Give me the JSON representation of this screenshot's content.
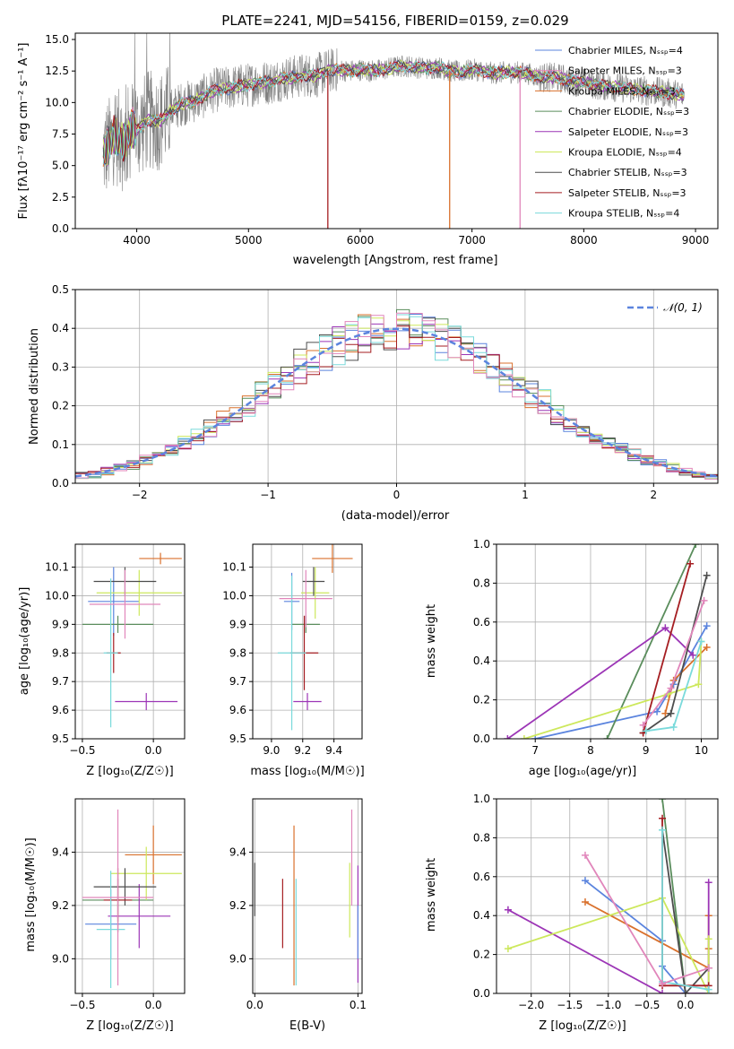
{
  "colors": [
    "#5b84de",
    "#d9712d",
    "#5a8d5c",
    "#9c35b6",
    "#cde85c",
    "#4d4d4d",
    "#a51e22",
    "#7adadb",
    "#e186bb"
  ],
  "chart_data": [
    {
      "id": "spectrum",
      "type": "line",
      "title": "PLATE=2241, MJD=54156, FIBERID=0159, z=0.029",
      "xlabel": "wavelength [Angstrom, rest frame]",
      "ylabel": "Flux [fλ10⁻¹⁷ erg cm⁻² s⁻¹ A⁻¹]",
      "xlim": [
        3450,
        9200
      ],
      "ylim": [
        0,
        15.5
      ],
      "xticks": [
        4000,
        5000,
        6000,
        7000,
        8000,
        9000
      ],
      "yticks": [
        0.0,
        2.5,
        5.0,
        7.5,
        10.0,
        12.5,
        15.0
      ],
      "legend_position": "upper-right",
      "legend": [
        "Chabrier MILES, Nₛₛₚ=4",
        "Salpeter MILES, Nₛₛₚ=3",
        "Kroupa MILES, Nₛₛₚ=3",
        "Chabrier ELODIE, Nₛₛₚ=3",
        "Salpeter ELODIE, Nₛₛₚ=3",
        "Kroupa ELODIE, Nₛₛₚ=4",
        "Chabrier STELIB, Nₛₛₚ=3",
        "Salpeter STELIB, Nₛₛₚ=3",
        "Kroupa STELIB, Nₛₛₚ=4"
      ],
      "legend_colors": [
        "#5b84de",
        "#e186bb",
        "#d9712d",
        "#5a8d5c",
        "#9c35b6",
        "#cde85c",
        "#4d4d4d",
        "#a51e22",
        "#7adadb"
      ],
      "data_color": "#808080",
      "model_curve": {
        "x": [
          3700,
          3750,
          3800,
          3850,
          3900,
          3950,
          4000,
          4100,
          4200,
          4300,
          4400,
          4500,
          4600,
          4700,
          4800,
          4900,
          5000,
          5100,
          5200,
          5300,
          5400,
          5500,
          5600,
          5700,
          5800,
          5900,
          6000,
          6100,
          6200,
          6300,
          6400,
          6500,
          6600,
          6700,
          6800,
          6900,
          7000,
          7100,
          7200,
          7300,
          7400,
          7500,
          7600,
          7700,
          7800,
          7900,
          8000,
          8100,
          8200,
          8300,
          8400,
          8500,
          8600,
          8700,
          8800,
          8900
        ],
        "y": [
          6.0,
          6.5,
          7.5,
          7.0,
          6.8,
          8.0,
          7.8,
          8.6,
          8.5,
          9.3,
          9.9,
          10.1,
          10.5,
          11.0,
          11.1,
          11.3,
          11.4,
          11.6,
          11.6,
          11.9,
          12.0,
          12.2,
          12.1,
          12.5,
          12.6,
          12.5,
          12.6,
          12.5,
          12.6,
          12.8,
          12.9,
          12.8,
          12.7,
          12.8,
          12.5,
          12.4,
          12.6,
          12.5,
          12.3,
          12.4,
          12.4,
          12.3,
          12.0,
          12.0,
          11.9,
          11.7,
          11.6,
          11.4,
          11.3,
          11.2,
          11.1,
          11.0,
          10.9,
          10.8,
          10.7,
          10.6
        ]
      },
      "dips": [
        {
          "x": 5710,
          "series": 7
        },
        {
          "x": 6800,
          "series": 2
        },
        {
          "x": 7430,
          "series": 1
        }
      ]
    },
    {
      "id": "residuals",
      "type": "histogram",
      "xlabel": "(data-model)/error",
      "ylabel": "Normed distribution",
      "xlim": [
        -2.5,
        2.5
      ],
      "ylim": [
        0,
        0.5
      ],
      "xticks": [
        -2,
        -1,
        0,
        1,
        2
      ],
      "yticks": [
        0.0,
        0.1,
        0.2,
        0.3,
        0.4,
        0.5
      ],
      "bin_width": 0.1,
      "legend_position": "upper-right",
      "legend": [
        "𝒩(0, 1)"
      ],
      "legend_color": "#5b84de"
    },
    {
      "id": "age_vs_Z",
      "type": "errorbar",
      "xlabel": "Z [log₁₀(Z/Z☉)]",
      "ylabel": "age  [log₁₀(age/yr)]",
      "xlim": [
        -0.55,
        0.22
      ],
      "ylim": [
        9.5,
        10.18
      ],
      "xticks": [
        -0.5,
        0.0
      ],
      "yticks": [
        9.5,
        9.6,
        9.7,
        9.8,
        9.9,
        10.0,
        10.1
      ],
      "points": [
        {
          "x": -0.28,
          "y": 9.98,
          "xe": 0.18,
          "ye": 0.12,
          "c": 0
        },
        {
          "x": 0.05,
          "y": 10.13,
          "xe": 0.15,
          "ye": 0.02,
          "c": 1
        },
        {
          "x": -0.25,
          "y": 9.9,
          "xe": 0.25,
          "ye": 0.03,
          "c": 2
        },
        {
          "x": -0.05,
          "y": 9.63,
          "xe": 0.22,
          "ye": 0.03,
          "c": 3
        },
        {
          "x": -0.1,
          "y": 10.01,
          "xe": 0.3,
          "ye": 0.08,
          "c": 4
        },
        {
          "x": -0.2,
          "y": 10.05,
          "xe": 0.22,
          "ye": 0.05,
          "c": 5
        },
        {
          "x": -0.28,
          "y": 9.8,
          "xe": 0.05,
          "ye": 0.07,
          "c": 6
        },
        {
          "x": -0.3,
          "y": 9.8,
          "xe": 0.05,
          "ye": 0.26,
          "c": 7
        },
        {
          "x": -0.2,
          "y": 9.97,
          "xe": 0.25,
          "ye": 0.12,
          "c": 8
        }
      ]
    },
    {
      "id": "age_vs_mass",
      "type": "errorbar",
      "xlabel": "mass [log₁₀(M/M☉)]",
      "ylabel": "",
      "xlim": [
        8.88,
        9.58
      ],
      "ylim": [
        9.5,
        10.18
      ],
      "xticks": [
        9.0,
        9.2,
        9.4
      ],
      "yticks": [
        9.5,
        9.6,
        9.7,
        9.8,
        9.9,
        10.0,
        10.1
      ],
      "points": [
        {
          "x": 9.13,
          "y": 9.98,
          "xe": 0.05,
          "ye": 0.1,
          "c": 0
        },
        {
          "x": 9.39,
          "y": 10.13,
          "xe": 0.13,
          "ye": 0.05,
          "c": 1
        },
        {
          "x": 9.22,
          "y": 9.9,
          "xe": 0.09,
          "ye": 0.03,
          "c": 2
        },
        {
          "x": 9.23,
          "y": 9.63,
          "xe": 0.09,
          "ye": 0.03,
          "c": 3
        },
        {
          "x": 9.28,
          "y": 10.01,
          "xe": 0.09,
          "ye": 0.09,
          "c": 4
        },
        {
          "x": 9.27,
          "y": 10.05,
          "xe": 0.07,
          "ye": 0.05,
          "c": 5
        },
        {
          "x": 9.21,
          "y": 9.8,
          "xe": 0.09,
          "ye": 0.13,
          "c": 6
        },
        {
          "x": 9.13,
          "y": 9.8,
          "xe": 0.09,
          "ye": 0.27,
          "c": 7
        },
        {
          "x": 9.22,
          "y": 9.99,
          "xe": 0.17,
          "ye": 0.1,
          "c": 8
        }
      ]
    },
    {
      "id": "weight_vs_age",
      "type": "line",
      "xlabel": "age  [log₁₀(age/yr)]",
      "ylabel": "mass weight",
      "xlim": [
        6.3,
        10.3
      ],
      "ylim": [
        0,
        1.0
      ],
      "xticks": [
        7,
        8,
        9,
        10
      ],
      "yticks": [
        0.0,
        0.2,
        0.4,
        0.6,
        0.8,
        1.0
      ],
      "series": [
        {
          "c": 0,
          "x": [
            7.0,
            9.2,
            9.5,
            10.1
          ],
          "y": [
            0.0,
            0.14,
            0.28,
            0.58
          ]
        },
        {
          "c": 1,
          "x": [
            9.35,
            9.5,
            10.1
          ],
          "y": [
            0.13,
            0.3,
            0.47
          ]
        },
        {
          "c": 2,
          "x": [
            8.3,
            9.9
          ],
          "y": [
            0.0,
            1.0
          ]
        },
        {
          "c": 3,
          "x": [
            6.5,
            9.35,
            9.85
          ],
          "y": [
            0.0,
            0.57,
            0.43
          ]
        },
        {
          "c": 4,
          "x": [
            6.8,
            9.4,
            9.95,
            10.0
          ],
          "y": [
            0.0,
            0.23,
            0.28,
            0.5
          ]
        },
        {
          "c": 5,
          "x": [
            8.95,
            9.45,
            10.1
          ],
          "y": [
            0.03,
            0.13,
            0.84
          ]
        },
        {
          "c": 6,
          "x": [
            8.95,
            9.8
          ],
          "y": [
            0.03,
            0.9
          ]
        },
        {
          "c": 7,
          "x": [
            9.0,
            9.5,
            10.0
          ],
          "y": [
            0.04,
            0.06,
            0.5
          ]
        },
        {
          "c": 8,
          "x": [
            8.95,
            9.45,
            10.05
          ],
          "y": [
            0.07,
            0.26,
            0.71
          ]
        }
      ]
    },
    {
      "id": "mass_vs_Z",
      "type": "errorbar",
      "xlabel": "Z [log₁₀(Z/Z☉)]",
      "ylabel": "mass [log₁₀(M/M☉)]",
      "xlim": [
        -0.55,
        0.22
      ],
      "ylim": [
        8.87,
        9.6
      ],
      "xticks": [
        -0.5,
        0.0
      ],
      "yticks": [
        9.0,
        9.2,
        9.4
      ],
      "points": [
        {
          "x": -0.3,
          "y": 9.13,
          "xe": 0.18,
          "ye": 0.13,
          "c": 0
        },
        {
          "x": 0.0,
          "y": 9.39,
          "xe": 0.2,
          "ye": 0.11,
          "c": 1
        },
        {
          "x": -0.25,
          "y": 9.22,
          "xe": 0.25,
          "ye": 0.08,
          "c": 2
        },
        {
          "x": -0.1,
          "y": 9.16,
          "xe": 0.22,
          "ye": 0.12,
          "c": 3
        },
        {
          "x": -0.05,
          "y": 9.32,
          "xe": 0.25,
          "ye": 0.1,
          "c": 4
        },
        {
          "x": -0.2,
          "y": 9.27,
          "xe": 0.22,
          "ye": 0.07,
          "c": 5
        },
        {
          "x": -0.25,
          "y": 9.22,
          "xe": 0.1,
          "ye": 0.12,
          "c": 6
        },
        {
          "x": -0.3,
          "y": 9.11,
          "xe": 0.1,
          "ye": 0.22,
          "c": 7
        },
        {
          "x": -0.25,
          "y": 9.23,
          "xe": 0.25,
          "ye": 0.33,
          "c": 8
        }
      ]
    },
    {
      "id": "mass_vs_ebv",
      "type": "errorbar",
      "xlabel": "E(B-V)",
      "ylabel": "",
      "xlim": [
        -0.002,
        0.104
      ],
      "ylim": [
        8.87,
        9.6
      ],
      "xticks": [
        0.0,
        0.1
      ],
      "yticks": [
        9.0,
        9.2,
        9.4
      ],
      "points": [
        {
          "x": 0.0,
          "y": 9.26,
          "ye": 0.1,
          "c": 5
        },
        {
          "x": 0.027,
          "y": 9.17,
          "ye": 0.13,
          "c": 6
        },
        {
          "x": 0.038,
          "y": 9.2,
          "ye": 0.3,
          "c": 1
        },
        {
          "x": 0.04,
          "y": 9.1,
          "ye": 0.2,
          "c": 7
        },
        {
          "x": 0.092,
          "y": 9.22,
          "ye": 0.14,
          "c": 4
        },
        {
          "x": 0.094,
          "y": 9.38,
          "ye": 0.18,
          "c": 8
        },
        {
          "x": 0.1,
          "y": 9.13,
          "ye": 0.22,
          "c": 3
        },
        {
          "x": 0.1,
          "y": 9.1,
          "ye": 0.1,
          "c": 0
        }
      ]
    },
    {
      "id": "weight_vs_Z",
      "type": "line",
      "xlabel": "Z [log₁₀(Z/Z☉)]",
      "ylabel": "mass weight",
      "xlim": [
        -2.45,
        0.42
      ],
      "ylim": [
        0,
        1.0
      ],
      "xticks": [
        -2.0,
        -1.5,
        -1.0,
        -0.5,
        0.0
      ],
      "yticks": [
        0.0,
        0.2,
        0.4,
        0.6,
        0.8,
        1.0
      ],
      "series": [
        {
          "c": 0,
          "x": [
            -1.3,
            -0.3,
            -0.3,
            0.0
          ],
          "y": [
            0.58,
            0.27,
            0.14,
            0.0
          ]
        },
        {
          "c": 1,
          "x": [
            -1.3,
            0.3,
            0.3,
            0.3
          ],
          "y": [
            0.47,
            0.13,
            0.4,
            0.23
          ]
        },
        {
          "c": 2,
          "x": [
            -0.3,
            0.0
          ],
          "y": [
            1.0,
            0.0
          ]
        },
        {
          "c": 3,
          "x": [
            -2.3,
            -0.3,
            0.3,
            0.3
          ],
          "y": [
            0.43,
            0.0,
            0.0,
            0.57
          ]
        },
        {
          "c": 4,
          "x": [
            -2.3,
            -0.3,
            0.3,
            0.3
          ],
          "y": [
            0.23,
            0.49,
            0.0,
            0.28
          ]
        },
        {
          "c": 5,
          "x": [
            -0.3,
            0.0,
            0.3
          ],
          "y": [
            0.84,
            0.0,
            0.13
          ]
        },
        {
          "c": 6,
          "x": [
            -0.3,
            -0.3,
            0.3
          ],
          "y": [
            0.9,
            0.04,
            0.04
          ]
        },
        {
          "c": 7,
          "x": [
            -0.3,
            -0.3,
            0.3
          ],
          "y": [
            0.84,
            0.06,
            0.02
          ]
        },
        {
          "c": 8,
          "x": [
            -1.3,
            -0.3,
            0.3
          ],
          "y": [
            0.71,
            0.05,
            0.13
          ]
        }
      ]
    }
  ]
}
